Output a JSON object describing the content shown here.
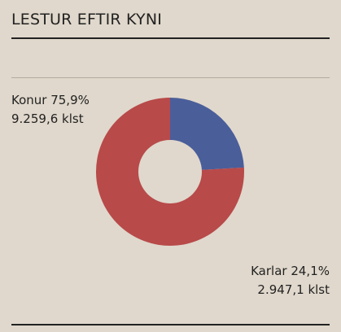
{
  "title": "LESTUR EFTIR KYNI",
  "colors": {
    "background": "#e0d8cc",
    "female": "#b84a4a",
    "male": "#4a5e9a"
  },
  "chart_data": {
    "type": "pie",
    "donut": true,
    "title": "LESTUR EFTIR KYNI",
    "slices": [
      {
        "name": "Karlar",
        "percent": 24.1,
        "value": 2947.1,
        "percent_label": "24,1%",
        "value_label": "2.947,1 klst",
        "color": "#4a5e9a"
      },
      {
        "name": "Konur",
        "percent": 75.9,
        "value": 9259.6,
        "percent_label": "75,9%",
        "value_label": "9.259,6 klst",
        "color": "#b84a4a"
      }
    ]
  },
  "labels": {
    "konur_line1": "Konur 75,9%",
    "konur_line2": "9.259,6 klst",
    "karlar_line1": "Karlar 24,1%",
    "karlar_line2": "2.947,1 klst"
  }
}
